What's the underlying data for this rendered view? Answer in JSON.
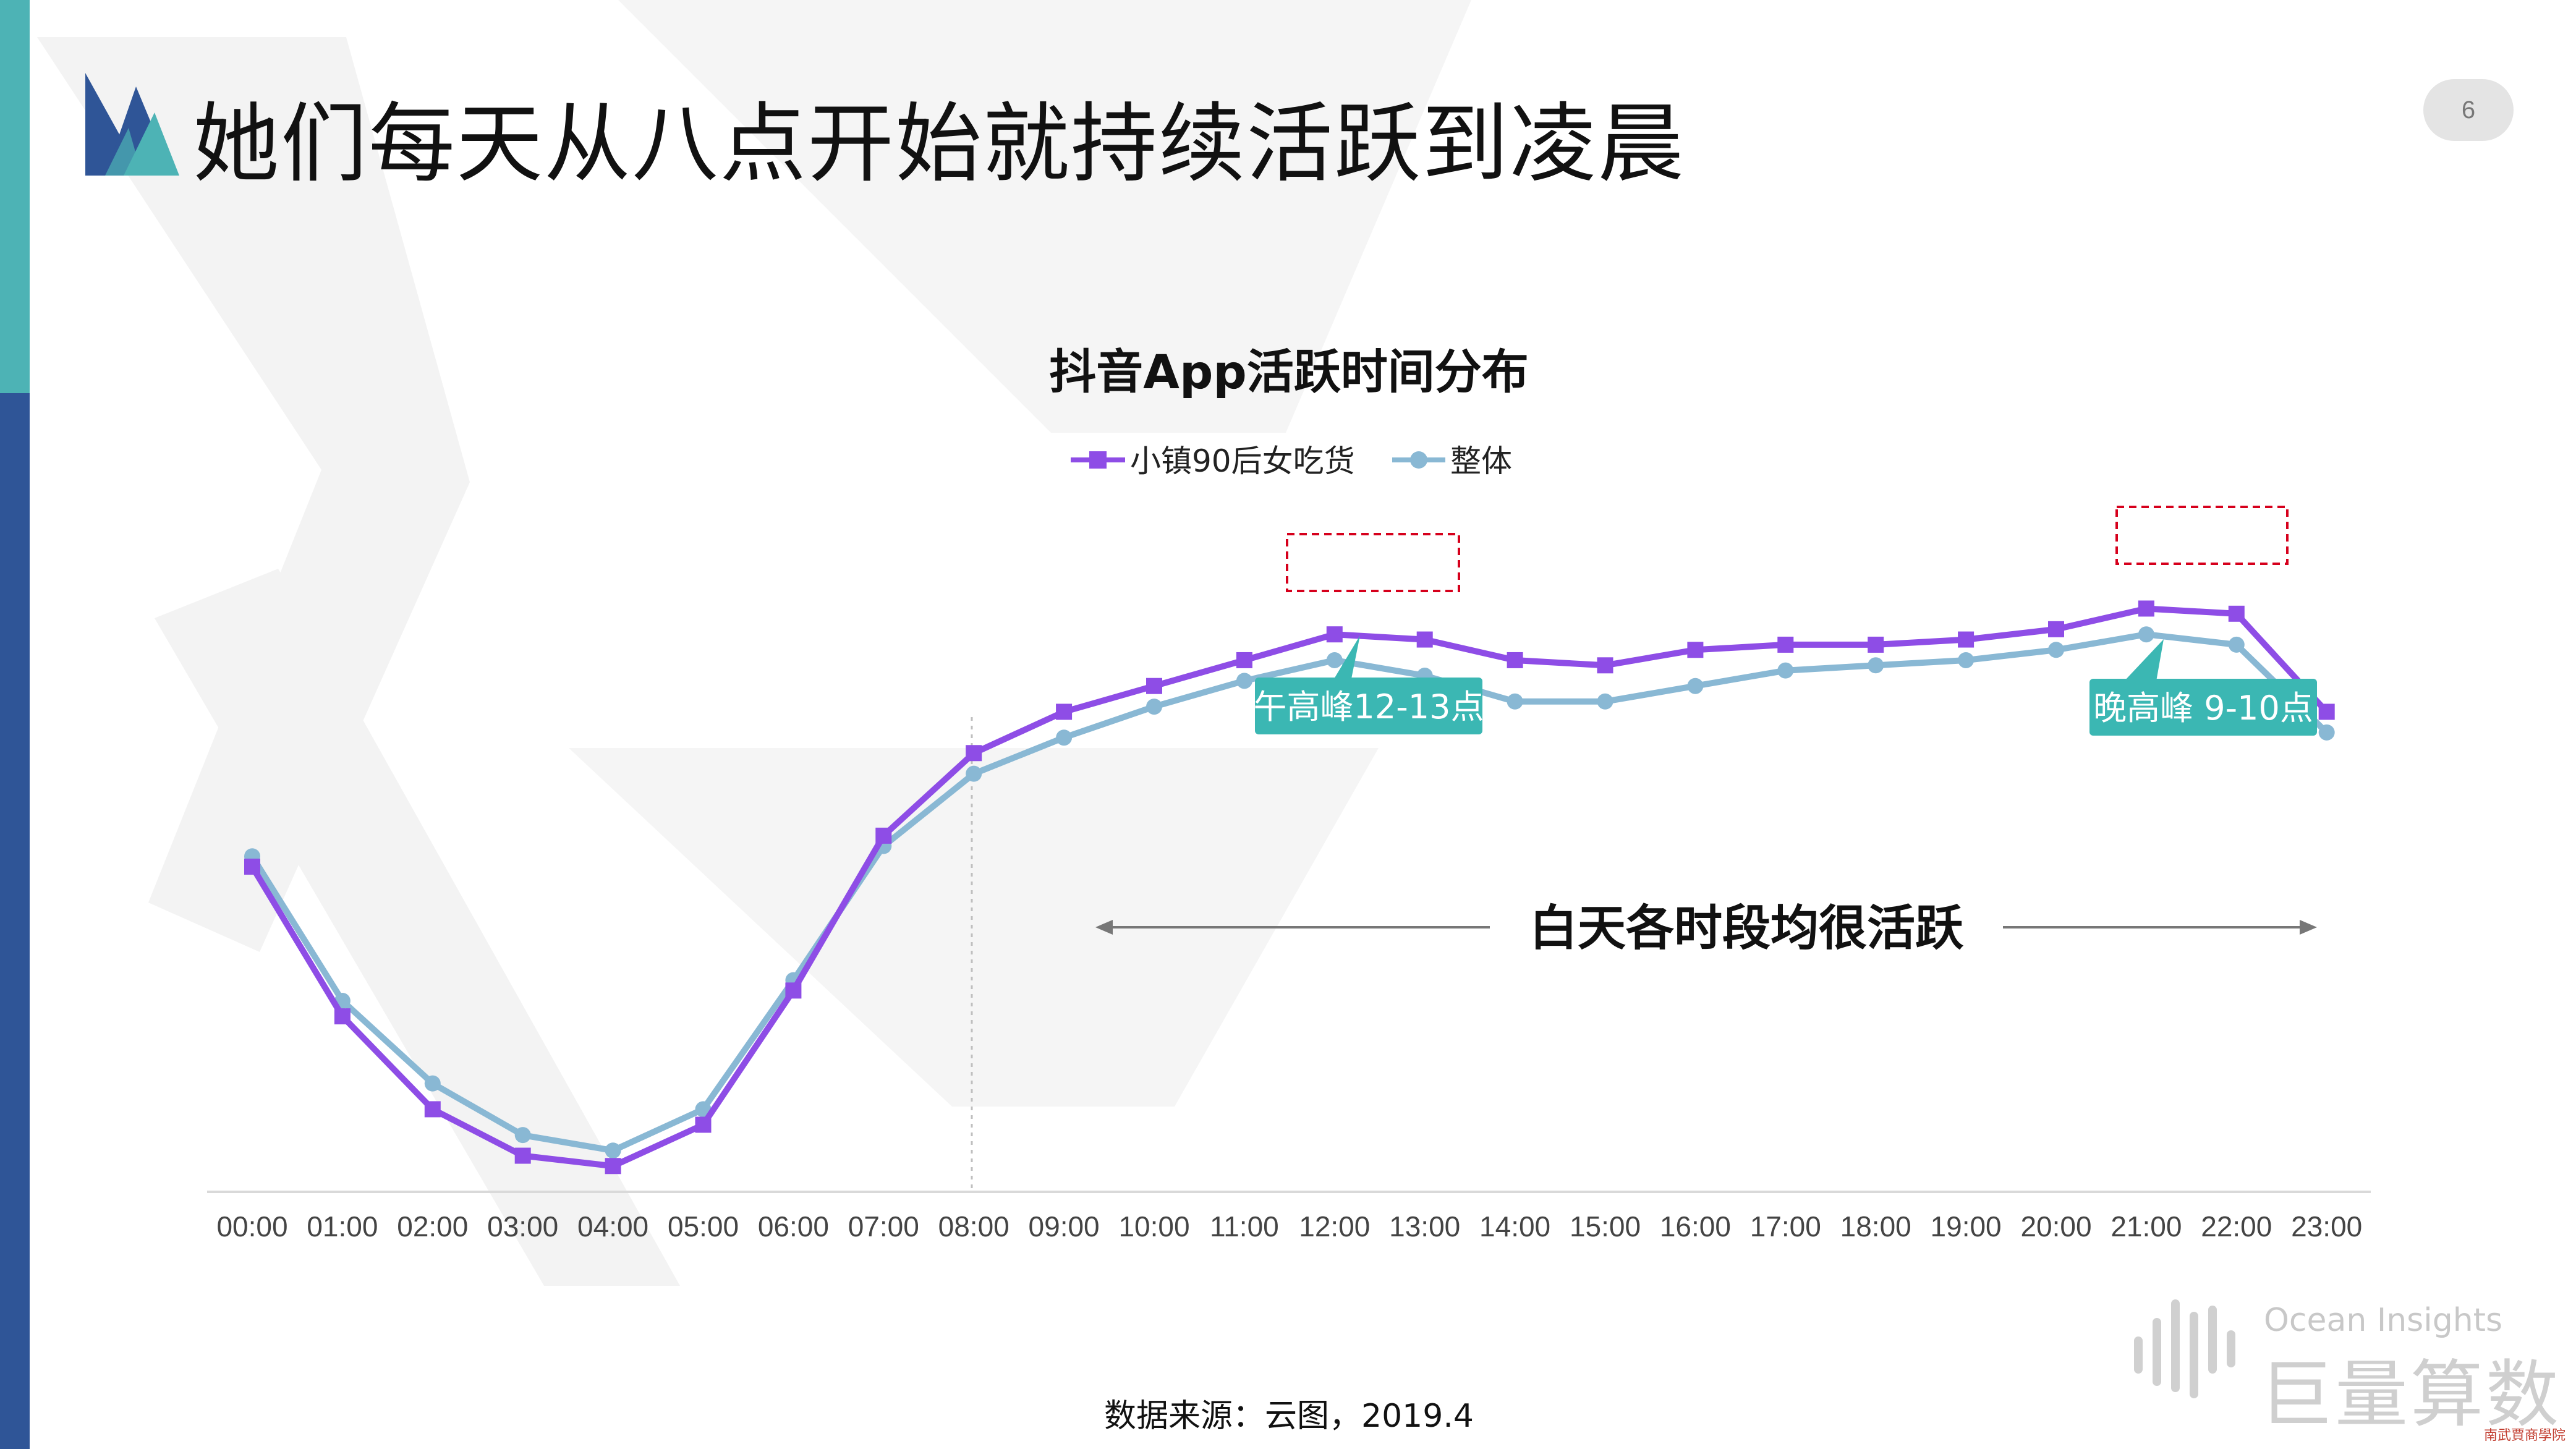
{
  "page": {
    "title": "她们每天从八点开始就持续活跃到凌晨",
    "page_number": "6",
    "source_note": "数据来源：云图，2019.4",
    "watermark_en": "Ocean Insights",
    "watermark_cn": "巨量算数",
    "corner_stamp": "南武賈商學院"
  },
  "colors": {
    "series_primary": "#8e4de6",
    "series_secondary": "#89b8d4",
    "callout": "#3bb7b3",
    "highlight_box": "#d6001c",
    "accent_teal": "#4db3b5",
    "accent_navy": "#2f5597"
  },
  "chart_data": {
    "type": "line",
    "title": "抖音App活跃时间分布",
    "legend_position": "top-center",
    "x": [
      "00:00",
      "01:00",
      "02:00",
      "03:00",
      "04:00",
      "05:00",
      "06:00",
      "07:00",
      "08:00",
      "09:00",
      "10:00",
      "11:00",
      "12:00",
      "13:00",
      "14:00",
      "15:00",
      "16:00",
      "17:00",
      "18:00",
      "19:00",
      "20:00",
      "21:00",
      "22:00",
      "23:00"
    ],
    "series": [
      {
        "name": "小镇90后女吃货",
        "values": [
          63,
          34,
          16,
          7,
          5,
          13,
          39,
          69,
          85,
          93,
          98,
          103,
          108,
          107,
          103,
          102,
          105,
          106,
          106,
          107,
          109,
          113,
          112,
          93
        ]
      },
      {
        "name": "整体",
        "values": [
          65,
          37,
          21,
          11,
          8,
          16,
          41,
          67,
          81,
          88,
          94,
          99,
          103,
          100,
          95,
          95,
          98,
          101,
          102,
          103,
          105,
          108,
          106,
          89
        ]
      }
    ],
    "ylim": [
      0,
      125
    ],
    "y_axis_visible": false,
    "grid": false,
    "reference_line_at": "08:00",
    "annotations": {
      "noon_peak_label": "午高峰12-13点",
      "evening_peak_label": "晚高峰 9-10点",
      "daytime_note": "白天各时段均很活跃"
    }
  }
}
